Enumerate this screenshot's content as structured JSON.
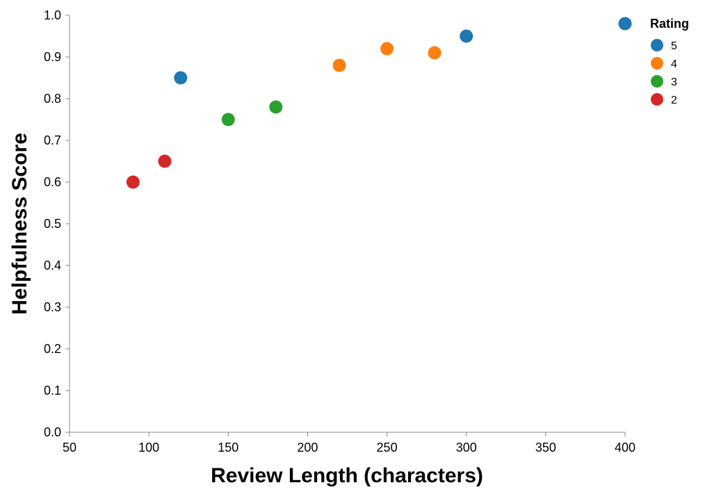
{
  "chart_data": {
    "type": "scatter",
    "title": "",
    "xlabel": "Review Length (characters)",
    "ylabel": "Helpfulness Score",
    "xlim": [
      50,
      400
    ],
    "ylim": [
      0,
      1.0
    ],
    "x_ticks": [
      50,
      100,
      150,
      200,
      250,
      300,
      350,
      400
    ],
    "y_ticks": [
      0.0,
      0.1,
      0.2,
      0.3,
      0.4,
      0.5,
      0.6,
      0.7,
      0.8,
      0.9,
      1.0
    ],
    "x_tick_labels": [
      "50",
      "100",
      "150",
      "200",
      "250",
      "300",
      "350",
      "400"
    ],
    "y_tick_labels": [
      "0.0",
      "0.1",
      "0.2",
      "0.3",
      "0.4",
      "0.5",
      "0.6",
      "0.7",
      "0.8",
      "0.9",
      "1.0"
    ],
    "grid": false,
    "legend": {
      "title": "Rating",
      "placement": "top-right",
      "entries": [
        "5",
        "4",
        "3",
        "2"
      ]
    },
    "series": [
      {
        "name": "5",
        "color": "#1f77b4",
        "points": [
          {
            "x": 120,
            "y": 0.85
          },
          {
            "x": 300,
            "y": 0.95
          },
          {
            "x": 400,
            "y": 0.98
          }
        ]
      },
      {
        "name": "4",
        "color": "#ff7f0e",
        "points": [
          {
            "x": 220,
            "y": 0.88
          },
          {
            "x": 250,
            "y": 0.92
          },
          {
            "x": 280,
            "y": 0.91
          }
        ]
      },
      {
        "name": "3",
        "color": "#2ca02c",
        "points": [
          {
            "x": 150,
            "y": 0.75
          },
          {
            "x": 180,
            "y": 0.78
          }
        ]
      },
      {
        "name": "2",
        "color": "#d62728",
        "points": [
          {
            "x": 90,
            "y": 0.6
          },
          {
            "x": 110,
            "y": 0.65
          }
        ]
      }
    ]
  }
}
